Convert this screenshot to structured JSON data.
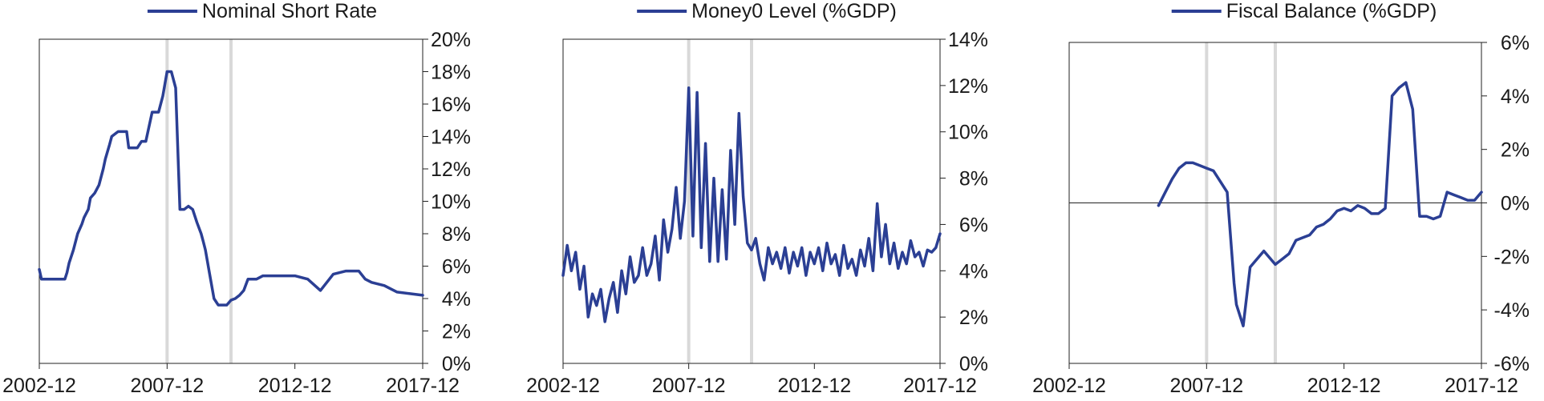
{
  "style": {
    "line_color": "#2b3f94",
    "axis_color": "#222222",
    "recession_band_color": "#d9d9d9"
  },
  "chart_data": [
    {
      "type": "line",
      "legend": "Nominal Short Rate",
      "legend_position": "top-center",
      "y_axis_side": "right",
      "x_ticks": [
        "2002-12",
        "2007-12",
        "2012-12",
        "2017-12"
      ],
      "xlim": [
        "2002-12",
        "2017-12"
      ],
      "ylim": [
        0,
        20
      ],
      "y_ticks": [
        "0%",
        "2%",
        "4%",
        "6%",
        "8%",
        "10%",
        "12%",
        "14%",
        "16%",
        "18%",
        "20%"
      ],
      "shaded_periods": [
        "2007-12",
        "2010-06"
      ],
      "series": [
        {
          "x": [
            "2002-12",
            "2003-01",
            "2003-03",
            "2003-06",
            "2003-09",
            "2003-12",
            "2004-01",
            "2004-02",
            "2004-04",
            "2004-06",
            "2004-08",
            "2004-09",
            "2004-11",
            "2004-12",
            "2005-02",
            "2005-04",
            "2005-06",
            "2005-07",
            "2005-09",
            "2005-10",
            "2005-12",
            "2006-01",
            "2006-03",
            "2006-05",
            "2006-06",
            "2006-08",
            "2006-10",
            "2006-12",
            "2007-02",
            "2007-05",
            "2007-08",
            "2007-10",
            "2007-12",
            "2008-02",
            "2008-04",
            "2008-06",
            "2008-08",
            "2008-10",
            "2008-12",
            "2009-02",
            "2009-04",
            "2009-05",
            "2009-06",
            "2009-08",
            "2009-10",
            "2009-12",
            "2010-02",
            "2010-04",
            "2010-06",
            "2010-08",
            "2010-10",
            "2010-12",
            "2011-02",
            "2011-06",
            "2011-09",
            "2011-12",
            "2012-02",
            "2012-06",
            "2012-09",
            "2012-12",
            "2013-06",
            "2013-12",
            "2014-06",
            "2014-12",
            "2015-03",
            "2015-06",
            "2015-09",
            "2015-12",
            "2016-06",
            "2016-09",
            "2016-12",
            "2017-06",
            "2017-12"
          ],
          "y": [
            5.8,
            5.2,
            5.2,
            5.2,
            5.2,
            5.2,
            5.6,
            6.2,
            7.0,
            8.0,
            8.6,
            9.0,
            9.5,
            10.2,
            10.5,
            11.0,
            12.0,
            12.6,
            13.5,
            14.0,
            14.2,
            14.3,
            14.3,
            14.3,
            13.3,
            13.3,
            13.3,
            13.7,
            13.7,
            15.5,
            15.5,
            16.5,
            18.0,
            18.0,
            17.0,
            9.5,
            9.5,
            9.7,
            9.5,
            8.7,
            8.0,
            7.5,
            7.0,
            5.5,
            4.0,
            3.6,
            3.6,
            3.6,
            3.9,
            4.0,
            4.2,
            4.5,
            5.2,
            5.2,
            5.4,
            5.4,
            5.4,
            5.4,
            5.4,
            5.4,
            5.2,
            4.5,
            5.5,
            5.7,
            5.7,
            5.7,
            5.2,
            5.0,
            4.8,
            4.6,
            4.4,
            4.3,
            4.2
          ]
        }
      ]
    },
    {
      "type": "line",
      "legend": "Money0 Level (%GDP)",
      "legend_position": "top-center",
      "y_axis_side": "right",
      "x_ticks": [
        "2002-12",
        "2007-12",
        "2012-12",
        "2017-12"
      ],
      "xlim": [
        "2002-12",
        "2017-12"
      ],
      "ylim": [
        0,
        14
      ],
      "y_ticks": [
        "0%",
        "2%",
        "4%",
        "6%",
        "8%",
        "10%",
        "12%",
        "14%"
      ],
      "shaded_periods": [
        "2007-12",
        "2010-06"
      ],
      "series": [
        {
          "x": [
            "2002-12",
            "2003-02",
            "2003-04",
            "2003-06",
            "2003-08",
            "2003-10",
            "2003-12",
            "2004-02",
            "2004-04",
            "2004-06",
            "2004-08",
            "2004-10",
            "2004-12",
            "2005-02",
            "2005-04",
            "2005-06",
            "2005-08",
            "2005-10",
            "2005-12",
            "2006-02",
            "2006-04",
            "2006-06",
            "2006-08",
            "2006-10",
            "2006-12",
            "2007-02",
            "2007-04",
            "2007-06",
            "2007-08",
            "2007-10",
            "2007-12",
            "2008-02",
            "2008-04",
            "2008-06",
            "2008-08",
            "2008-10",
            "2008-12",
            "2009-02",
            "2009-04",
            "2009-06",
            "2009-08",
            "2009-10",
            "2009-12",
            "2010-02",
            "2010-04",
            "2010-06",
            "2010-08",
            "2010-10",
            "2010-12",
            "2011-02",
            "2011-04",
            "2011-06",
            "2011-08",
            "2011-10",
            "2011-12",
            "2012-02",
            "2012-04",
            "2012-06",
            "2012-08",
            "2012-10",
            "2012-12",
            "2013-02",
            "2013-04",
            "2013-06",
            "2013-08",
            "2013-10",
            "2013-12",
            "2014-02",
            "2014-04",
            "2014-06",
            "2014-08",
            "2014-10",
            "2014-12",
            "2015-02",
            "2015-04",
            "2015-06",
            "2015-08",
            "2015-10",
            "2015-12",
            "2016-02",
            "2016-04",
            "2016-06",
            "2016-08",
            "2016-10",
            "2016-12",
            "2017-02",
            "2017-04",
            "2017-06",
            "2017-08",
            "2017-10",
            "2017-12"
          ],
          "y": [
            3.8,
            5.1,
            4.0,
            4.8,
            3.2,
            4.2,
            2.0,
            3.0,
            2.5,
            3.2,
            1.8,
            2.8,
            3.5,
            2.2,
            4.0,
            3.0,
            4.6,
            3.5,
            3.8,
            5.0,
            3.8,
            4.3,
            5.5,
            3.6,
            6.2,
            4.8,
            5.8,
            7.6,
            5.4,
            7.0,
            11.9,
            5.5,
            11.7,
            5.0,
            9.5,
            4.4,
            8.0,
            4.4,
            7.5,
            4.5,
            9.2,
            6.0,
            10.8,
            7.2,
            5.2,
            4.9,
            5.4,
            4.3,
            3.6,
            5.0,
            4.3,
            4.8,
            4.1,
            5.0,
            3.9,
            4.8,
            4.2,
            5.0,
            3.8,
            4.8,
            4.3,
            5.0,
            4.0,
            5.2,
            4.3,
            4.7,
            3.8,
            5.1,
            4.1,
            4.5,
            3.8,
            4.9,
            4.2,
            5.4,
            4.0,
            6.9,
            4.6,
            6.0,
            4.3,
            5.2,
            4.1,
            4.8,
            4.3,
            5.3,
            4.6,
            4.8,
            4.2,
            4.9,
            4.8,
            5.0,
            5.6
          ]
        }
      ]
    },
    {
      "type": "line",
      "legend": "Fiscal Balance (%GDP)",
      "legend_position": "top-center",
      "y_axis_side": "right",
      "x_ticks": [
        "2002-12",
        "2007-12",
        "2012-12",
        "2017-12"
      ],
      "xlim": [
        "2002-12",
        "2017-12"
      ],
      "ylim": [
        -6,
        6
      ],
      "y_ticks": [
        "-6%",
        "-4%",
        "-2%",
        "0%",
        "2%",
        "4%",
        "6%"
      ],
      "zero_line": true,
      "shaded_periods": [
        "2007-12",
        "2010-06"
      ],
      "series": [
        {
          "x": [
            "2006-03",
            "2006-06",
            "2006-09",
            "2006-12",
            "2007-03",
            "2007-06",
            "2007-09",
            "2007-12",
            "2008-03",
            "2008-06",
            "2008-09",
            "2008-12",
            "2009-01",
            "2009-04",
            "2009-07",
            "2009-09",
            "2010-01",
            "2010-06",
            "2010-09",
            "2010-12",
            "2011-03",
            "2011-06",
            "2011-09",
            "2011-12",
            "2012-03",
            "2012-06",
            "2012-09",
            "2012-12",
            "2013-03",
            "2013-06",
            "2013-09",
            "2013-12",
            "2014-03",
            "2014-06",
            "2014-09",
            "2014-12",
            "2015-03",
            "2015-06",
            "2015-09",
            "2015-12",
            "2016-03",
            "2016-06",
            "2016-09",
            "2016-12",
            "2017-03",
            "2017-06",
            "2017-09",
            "2017-12"
          ],
          "y": [
            -0.1,
            0.4,
            0.9,
            1.3,
            1.5,
            1.5,
            1.4,
            1.3,
            1.2,
            0.8,
            0.4,
            -3.0,
            -3.8,
            -4.6,
            -2.4,
            -2.2,
            -1.8,
            -2.3,
            -2.1,
            -1.9,
            -1.4,
            -1.3,
            -1.2,
            -0.9,
            -0.8,
            -0.6,
            -0.3,
            -0.2,
            -0.3,
            -0.1,
            -0.2,
            -0.4,
            -0.4,
            -0.2,
            4.0,
            4.3,
            4.5,
            3.5,
            -0.5,
            -0.5,
            -0.6,
            -0.5,
            0.4,
            0.3,
            0.2,
            0.1,
            0.1,
            0.4
          ]
        }
      ]
    }
  ]
}
